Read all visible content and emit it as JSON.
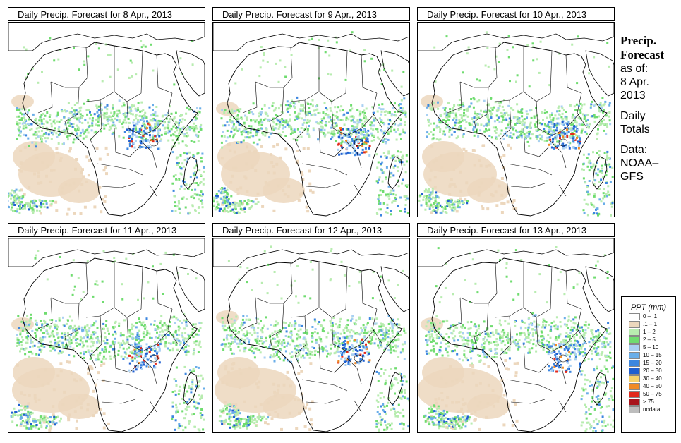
{
  "panels": [
    {
      "title": "Daily Precip. Forecast for  8 Apr., 2013",
      "variant": 0
    },
    {
      "title": "Daily Precip. Forecast for  9 Apr., 2013",
      "variant": 1
    },
    {
      "title": "Daily Precip. Forecast for  10 Apr., 2013",
      "variant": 2
    },
    {
      "title": "Daily Precip. Forecast for  11 Apr., 2013",
      "variant": 3
    },
    {
      "title": "Daily Precip. Forecast for  12 Apr., 2013",
      "variant": 4
    },
    {
      "title": "Daily Precip. Forecast for  13 Apr., 2013",
      "variant": 5
    }
  ],
  "side_info": {
    "heading_line1": "Precip.",
    "heading_line2": "Forecast",
    "as_of": "as of:",
    "date_line1": "8 Apr.",
    "date_line2": "2013",
    "totals_line1": "Daily",
    "totals_line2": "Totals",
    "source_line1": "Data:",
    "source_line2": "NOAA–",
    "source_line3": "GFS"
  },
  "legend": {
    "title": "PPT (mm)",
    "items": [
      {
        "label": "0 – .1",
        "color": "#ffffff"
      },
      {
        "label": ".1 – 1",
        "color": "#ecd7bd"
      },
      {
        "label": "1 – 2",
        "color": "#b8ecb0"
      },
      {
        "label": "2 – 5",
        "color": "#6fdc6f"
      },
      {
        "label": "5 – 10",
        "color": "#a9d0f2"
      },
      {
        "label": "10 – 15",
        "color": "#6aaee8"
      },
      {
        "label": "15 – 20",
        "color": "#3c86df"
      },
      {
        "label": "20 – 30",
        "color": "#1f5fd0"
      },
      {
        "label": "30 – 40",
        "color": "#f7d36b"
      },
      {
        "label": "40 – 50",
        "color": "#f08a26"
      },
      {
        "label": "50 – 75",
        "color": "#e32a1c"
      },
      {
        "label": "> 75",
        "color": "#a8141c"
      },
      {
        "label": "nodata",
        "color": "#bdbdbd"
      }
    ]
  }
}
